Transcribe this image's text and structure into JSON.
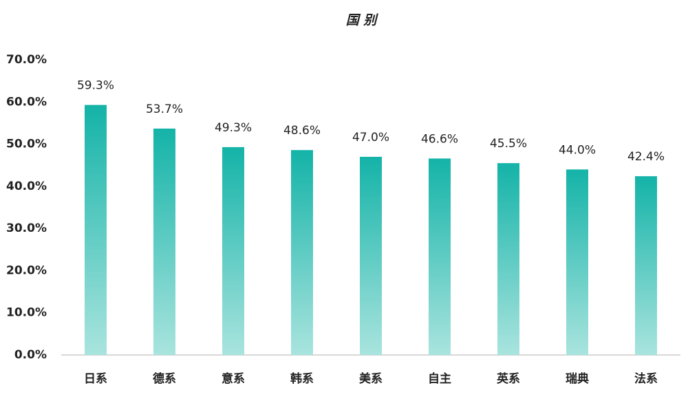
{
  "chart_data": {
    "type": "bar",
    "title": "国 别",
    "categories": [
      "日系",
      "德系",
      "意系",
      "韩系",
      "美系",
      "自主",
      "英系",
      "瑞典",
      "法系"
    ],
    "values": [
      59.3,
      53.7,
      49.3,
      48.6,
      47.0,
      46.6,
      45.5,
      44.0,
      42.4
    ],
    "value_labels": [
      "59.3%",
      "53.7%",
      "49.3%",
      "48.6%",
      "47.0%",
      "46.6%",
      "45.5%",
      "44.0%",
      "42.4%"
    ],
    "color": "#14b3a8",
    "ylim": [
      0,
      70
    ],
    "yticks": [
      {
        "value": 0,
        "label": "0.0%"
      },
      {
        "value": 10,
        "label": "10.0%"
      },
      {
        "value": 20,
        "label": "20.0%"
      },
      {
        "value": 30,
        "label": "30.0%"
      },
      {
        "value": 40,
        "label": "40.0%"
      },
      {
        "value": 50,
        "label": "50.0%"
      },
      {
        "value": 60,
        "label": "60.0%"
      },
      {
        "value": 70,
        "label": "70.0%"
      }
    ],
    "grid": false
  }
}
